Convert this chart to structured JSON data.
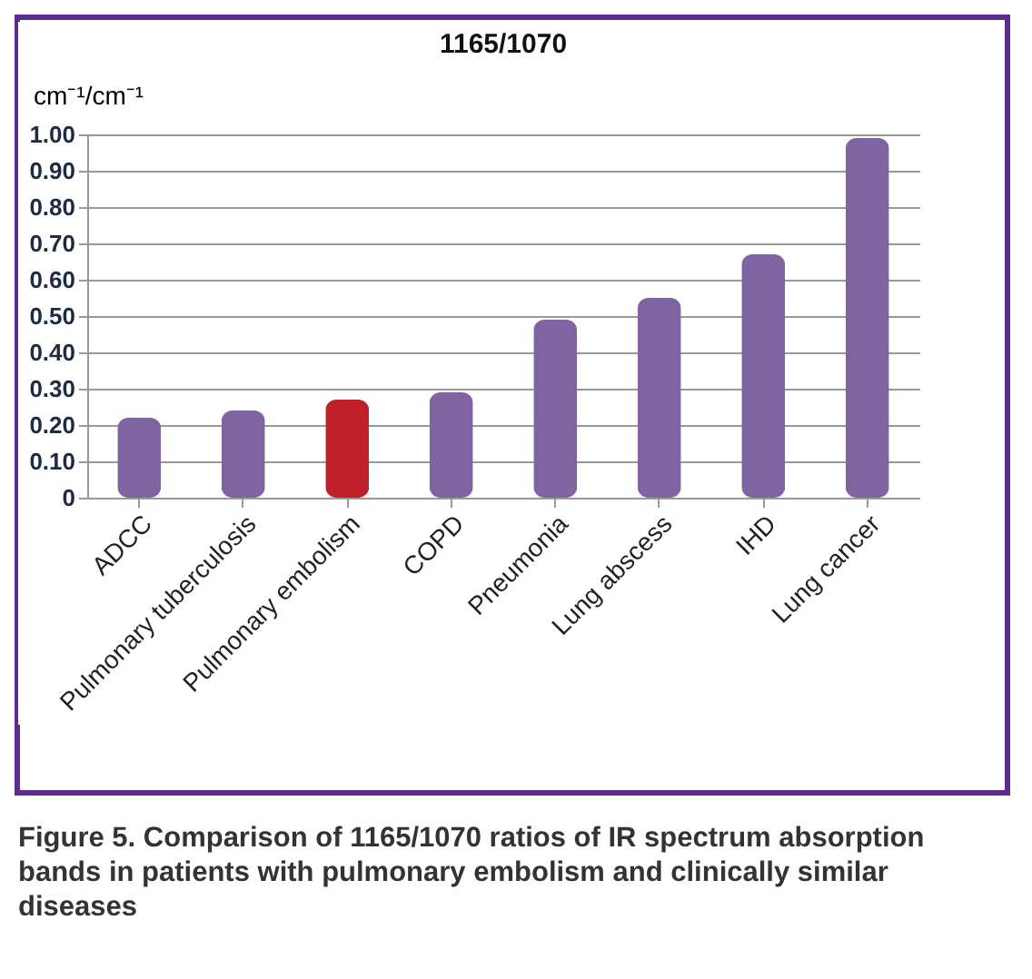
{
  "chart_data": {
    "type": "bar",
    "title": "1165/1070",
    "ylabel": "cm⁻¹/cm⁻¹",
    "categories": [
      "ADCC",
      "Pulmonary tuberculosis",
      "Pulmonary embolism",
      "COPD",
      "Pneumonia",
      "Lung abscess",
      "IHD",
      "Lung cancer"
    ],
    "values": [
      0.22,
      0.24,
      0.27,
      0.29,
      0.49,
      0.55,
      0.67,
      0.99
    ],
    "colors": [
      "#8064a2",
      "#8064a2",
      "#c0202a",
      "#8064a2",
      "#8064a2",
      "#8064a2",
      "#8064a2",
      "#8064a2"
    ],
    "ylim": [
      0,
      1
    ],
    "yticks": [
      0,
      {
        "value": 0.1,
        "label": "0.10"
      },
      {
        "value": 0.2,
        "label": "0.20"
      },
      {
        "value": 0.3,
        "label": "0.30"
      },
      {
        "value": 0.4,
        "label": "0.40"
      },
      {
        "value": 0.5,
        "label": "0.50"
      },
      {
        "value": 0.6,
        "label": "0.60"
      },
      {
        "value": 0.7,
        "label": "0.70"
      },
      {
        "value": 0.8,
        "label": "0.80"
      },
      {
        "value": 0.9,
        "label": "0.90"
      },
      {
        "value": 1,
        "label": "1.00"
      }
    ],
    "grid": "y",
    "annotations": [
      "Figure 5. Comparison of 1165/1070 ratios of IR spectrum absorption bands in patients with pulmonary embolism and clinically similar diseases"
    ]
  }
}
